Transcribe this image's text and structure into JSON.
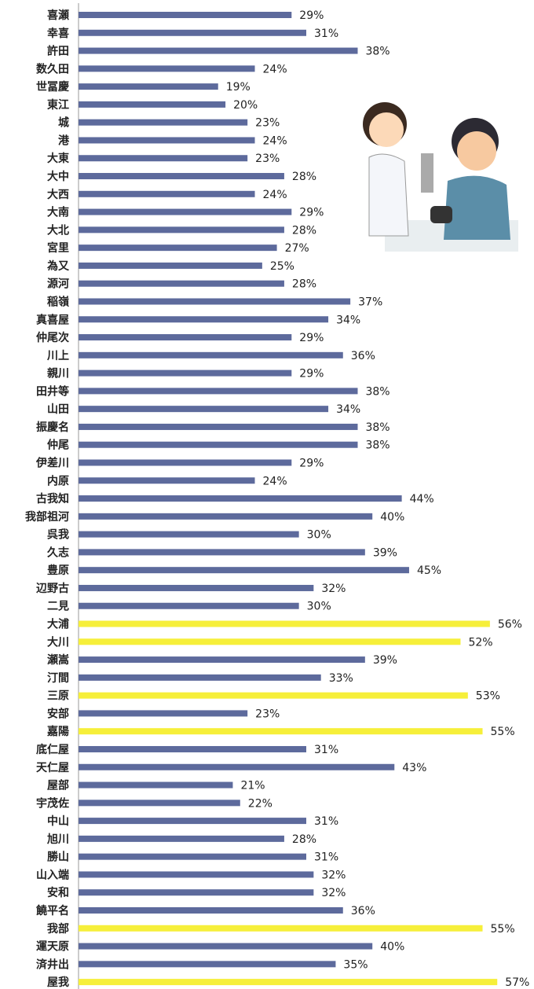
{
  "chart_data": {
    "type": "barh",
    "categories": [
      "喜瀬",
      "幸喜",
      "許田",
      "数久田",
      "世冨慶",
      "東江",
      "城",
      "港",
      "大東",
      "大中",
      "大西",
      "大南",
      "大北",
      "宮里",
      "為又",
      "源河",
      "稲嶺",
      "真喜屋",
      "仲尾次",
      "川上",
      "親川",
      "田井等",
      "山田",
      "振慶名",
      "仲尾",
      "伊差川",
      "内原",
      "古我知",
      "我部祖河",
      "呉我",
      "久志",
      "豊原",
      "辺野古",
      "二見",
      "大浦",
      "大川",
      "瀬嵩",
      "汀間",
      "三原",
      "安部",
      "嘉陽",
      "底仁屋",
      "天仁屋",
      "屋部",
      "宇茂佐",
      "中山",
      "旭川",
      "勝山",
      "山入端",
      "安和",
      "饒平名",
      "我部",
      "運天原",
      "済井出",
      "屋我"
    ],
    "values": [
      29,
      31,
      38,
      24,
      19,
      20,
      23,
      24,
      23,
      28,
      24,
      29,
      28,
      27,
      25,
      28,
      37,
      34,
      29,
      36,
      29,
      38,
      34,
      38,
      38,
      29,
      24,
      44,
      40,
      30,
      39,
      45,
      32,
      30,
      56,
      52,
      39,
      33,
      53,
      23,
      55,
      31,
      43,
      21,
      22,
      31,
      28,
      31,
      32,
      32,
      36,
      55,
      40,
      35,
      57
    ],
    "value_labels": [
      "29%",
      "31%",
      "38%",
      "24%",
      "19%",
      "20%",
      "23%",
      "24%",
      "23%",
      "28%",
      "24%",
      "29%",
      "28%",
      "27%",
      "25%",
      "28%",
      "37%",
      "34%",
      "29%",
      "36%",
      "29%",
      "38%",
      "34%",
      "38%",
      "38%",
      "29%",
      "24%",
      "44%",
      "40%",
      "30%",
      "39%",
      "45%",
      "32%",
      "30%",
      "56%",
      "52%",
      "39%",
      "33%",
      "53%",
      "23%",
      "55%",
      "31%",
      "43%",
      "21%",
      "22%",
      "31%",
      "28%",
      "31%",
      "32%",
      "32%",
      "36%",
      "55%",
      "40%",
      "35%",
      "57%"
    ],
    "colors": [
      "#5d6a9c",
      "#5d6a9c",
      "#5d6a9c",
      "#5d6a9c",
      "#5d6a9c",
      "#5d6a9c",
      "#5d6a9c",
      "#5d6a9c",
      "#5d6a9c",
      "#5d6a9c",
      "#5d6a9c",
      "#5d6a9c",
      "#5d6a9c",
      "#5d6a9c",
      "#5d6a9c",
      "#5d6a9c",
      "#5d6a9c",
      "#5d6a9c",
      "#5d6a9c",
      "#5d6a9c",
      "#5d6a9c",
      "#5d6a9c",
      "#5d6a9c",
      "#5d6a9c",
      "#5d6a9c",
      "#5d6a9c",
      "#5d6a9c",
      "#5d6a9c",
      "#5d6a9c",
      "#5d6a9c",
      "#5d6a9c",
      "#5d6a9c",
      "#5d6a9c",
      "#5d6a9c",
      "#f6ef3a",
      "#f6ef3a",
      "#5d6a9c",
      "#5d6a9c",
      "#f6ef3a",
      "#5d6a9c",
      "#f6ef3a",
      "#5d6a9c",
      "#5d6a9c",
      "#5d6a9c",
      "#5d6a9c",
      "#5d6a9c",
      "#5d6a9c",
      "#5d6a9c",
      "#5d6a9c",
      "#5d6a9c",
      "#5d6a9c",
      "#f6ef3a",
      "#5d6a9c",
      "#5d6a9c",
      "#f6ef3a"
    ],
    "xlim": [
      0,
      62
    ]
  }
}
